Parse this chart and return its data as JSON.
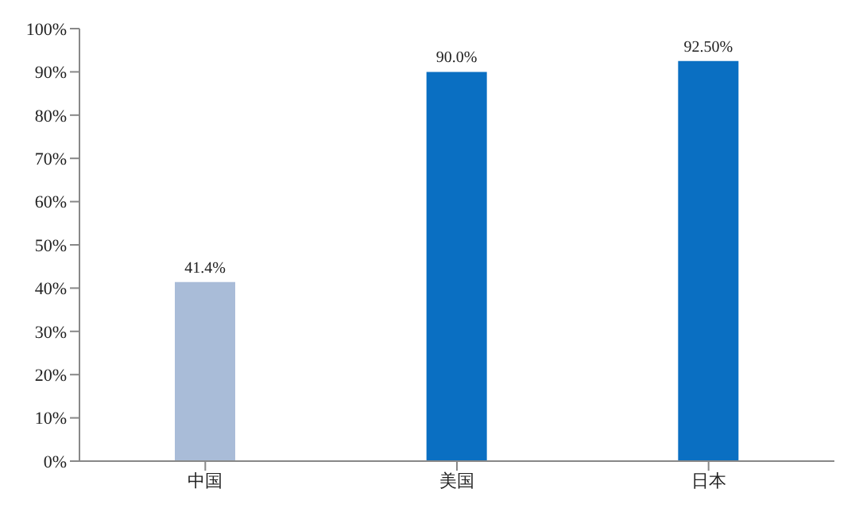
{
  "chart_data": {
    "type": "bar",
    "categories": [
      "中国",
      "美国",
      "日本"
    ],
    "values": [
      41.4,
      90.0,
      92.5
    ],
    "colors": [
      "#a9bcd8",
      "#0a6fc2",
      "#0a6fc2"
    ],
    "value_labels": [
      "41.4%",
      "90.0%",
      "92.50%"
    ],
    "ylim": [
      0,
      100
    ],
    "yticks": [
      {
        "value": 0,
        "label": "0%"
      },
      {
        "value": 10,
        "label": "10%"
      },
      {
        "value": 20,
        "label": "20%"
      },
      {
        "value": 30,
        "label": "30%"
      },
      {
        "value": 40,
        "label": "40%"
      },
      {
        "value": 50,
        "label": "50%"
      },
      {
        "value": 60,
        "label": "60%"
      },
      {
        "value": 70,
        "label": "70%"
      },
      {
        "value": 80,
        "label": "80%"
      },
      {
        "value": 90,
        "label": "90%"
      },
      {
        "value": 100,
        "label": "100%"
      }
    ],
    "grid": false,
    "legend": false
  }
}
